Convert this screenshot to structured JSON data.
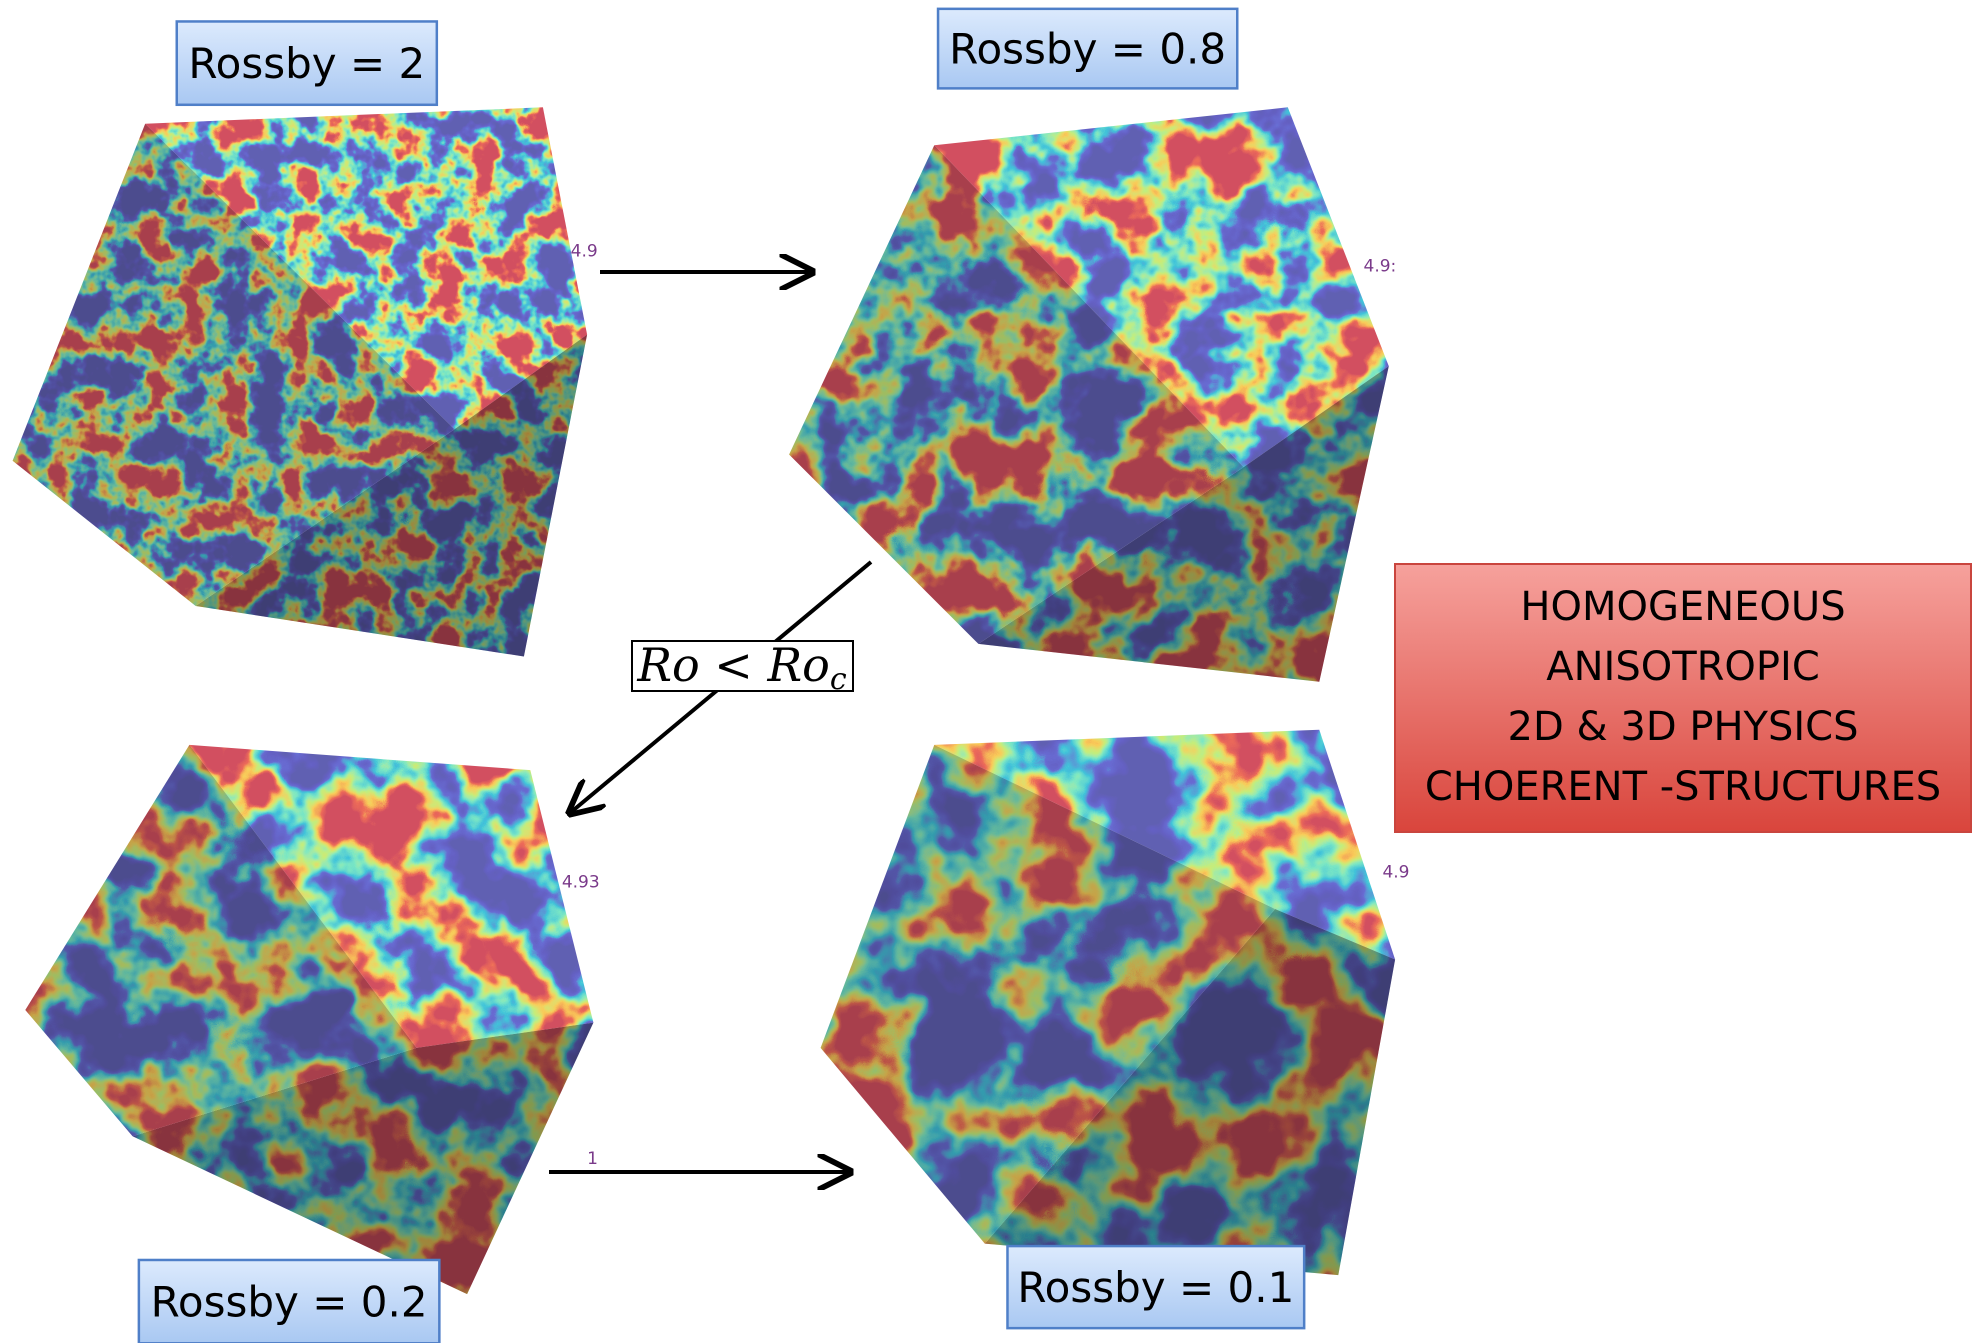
{
  "panels": [
    {
      "label": "Rossby = 2",
      "scale_label": "4.9"
    },
    {
      "label": "Rossby = 0.8",
      "scale_label": "4.9:"
    },
    {
      "label": "Rossby = 0.2",
      "scale_label": "4.93",
      "scale_min_label": "1"
    },
    {
      "label": "Rossby = 0.1",
      "scale_label": "4.9"
    }
  ],
  "transition": {
    "main": "Ro < Ro",
    "subscript": "c"
  },
  "summary_box": {
    "lines": [
      "HOMOGENEOUS",
      "ANISOTROPIC",
      "2D & 3D PHYSICS",
      "CHOERENT -STRUCTURES"
    ]
  }
}
